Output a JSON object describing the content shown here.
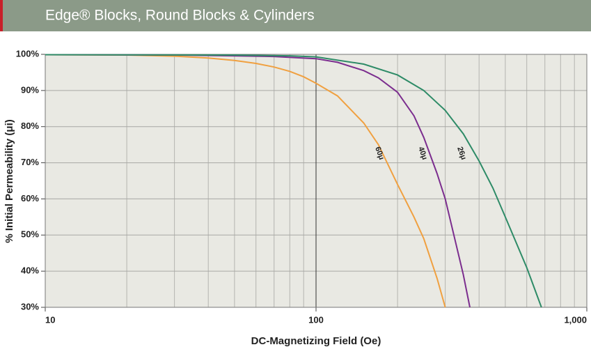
{
  "chart_data": {
    "type": "line",
    "title": "Edge® Blocks, Round Blocks & Cylinders",
    "x_label": "DC-Magnetizing Field (Oe)",
    "y_label": "% Initial Permeability (μi)",
    "log_x": true,
    "grid": true,
    "xlim": [
      10,
      1000
    ],
    "xticks": [
      10,
      100,
      {
        "value": 1000,
        "label": "1,000"
      }
    ],
    "ylim": [
      30,
      100
    ],
    "yticks": [
      {
        "value": 30,
        "label": "30%"
      },
      {
        "value": 40,
        "label": "40%"
      },
      {
        "value": 50,
        "label": "50%"
      },
      {
        "value": 60,
        "label": "60%"
      },
      {
        "value": 70,
        "label": "70%"
      },
      {
        "value": 80,
        "label": "80%"
      },
      {
        "value": 90,
        "label": "90%"
      },
      {
        "value": 100,
        "label": "100%"
      }
    ],
    "series": [
      {
        "name": "60μ",
        "color": "#f0a040",
        "x": [
          10,
          20,
          30,
          40,
          50,
          60,
          70,
          80,
          90,
          100,
          120,
          150,
          170,
          200,
          230,
          250,
          280,
          300
        ],
        "values": [
          99.9,
          99.8,
          99.5,
          99,
          98.3,
          97.5,
          96.5,
          95.3,
          93.8,
          92,
          88.5,
          81,
          75,
          64,
          55,
          49,
          38,
          30
        ]
      },
      {
        "name": "40μ",
        "color": "#7b2d8e",
        "x": [
          10,
          30,
          50,
          70,
          100,
          120,
          150,
          170,
          200,
          230,
          250,
          280,
          300,
          330,
          350,
          370
        ],
        "values": [
          99.9,
          99.8,
          99.6,
          99.4,
          98.8,
          97.8,
          95.5,
          93.5,
          89.5,
          83,
          77,
          67,
          60,
          47,
          39,
          30
        ]
      },
      {
        "name": "26μ",
        "color": "#2e8b67",
        "x": [
          10,
          50,
          80,
          100,
          150,
          200,
          250,
          300,
          350,
          400,
          450,
          500,
          600,
          680
        ],
        "values": [
          99.9,
          99.8,
          99.6,
          99.3,
          97.3,
          94.3,
          90,
          84.5,
          78,
          70.5,
          63,
          55,
          41,
          30
        ]
      }
    ]
  }
}
